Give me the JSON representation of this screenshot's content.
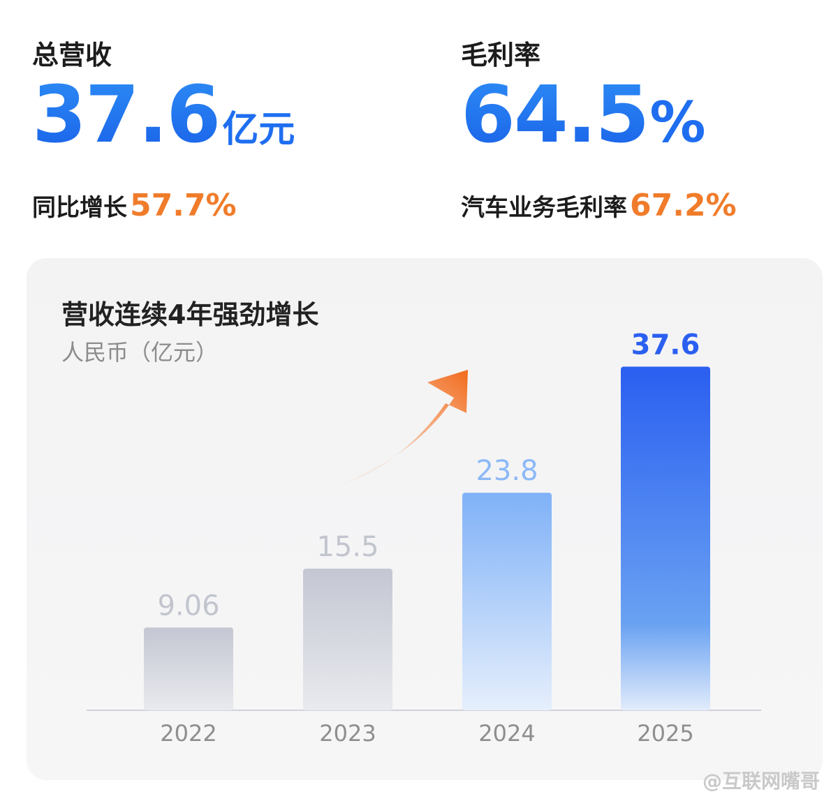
{
  "kpis": {
    "revenue": {
      "label": "总营收",
      "value": "37.6",
      "unit": "亿元",
      "sub_label": "同比增长",
      "sub_value": "57.7%"
    },
    "margin": {
      "label": "毛利率",
      "value": "64.5",
      "unit": "%",
      "sub_label": "汽车业务毛利率",
      "sub_value": "67.2%"
    }
  },
  "colors": {
    "accent_blue": "#1f6ef0",
    "accent_orange": "#f07c2b",
    "bar_gray": "#c9ccd6",
    "bar_light_blue": "#8cb8f7",
    "bar_blue": "#2a63ef"
  },
  "chart_data": {
    "type": "bar",
    "title": "营收连续4年强劲增长",
    "ylabel": "人民币（亿元）",
    "categories": [
      "2022",
      "2023",
      "2024",
      "2025"
    ],
    "values": [
      9.06,
      15.5,
      23.8,
      37.6
    ],
    "value_labels": [
      "9.06",
      "15.5",
      "23.8",
      "37.6"
    ],
    "ylim": [
      0,
      40
    ],
    "grid": false,
    "legend": "none",
    "annotations": [
      "orange-growth-arrow"
    ]
  },
  "watermark": "@互联网嘴哥"
}
